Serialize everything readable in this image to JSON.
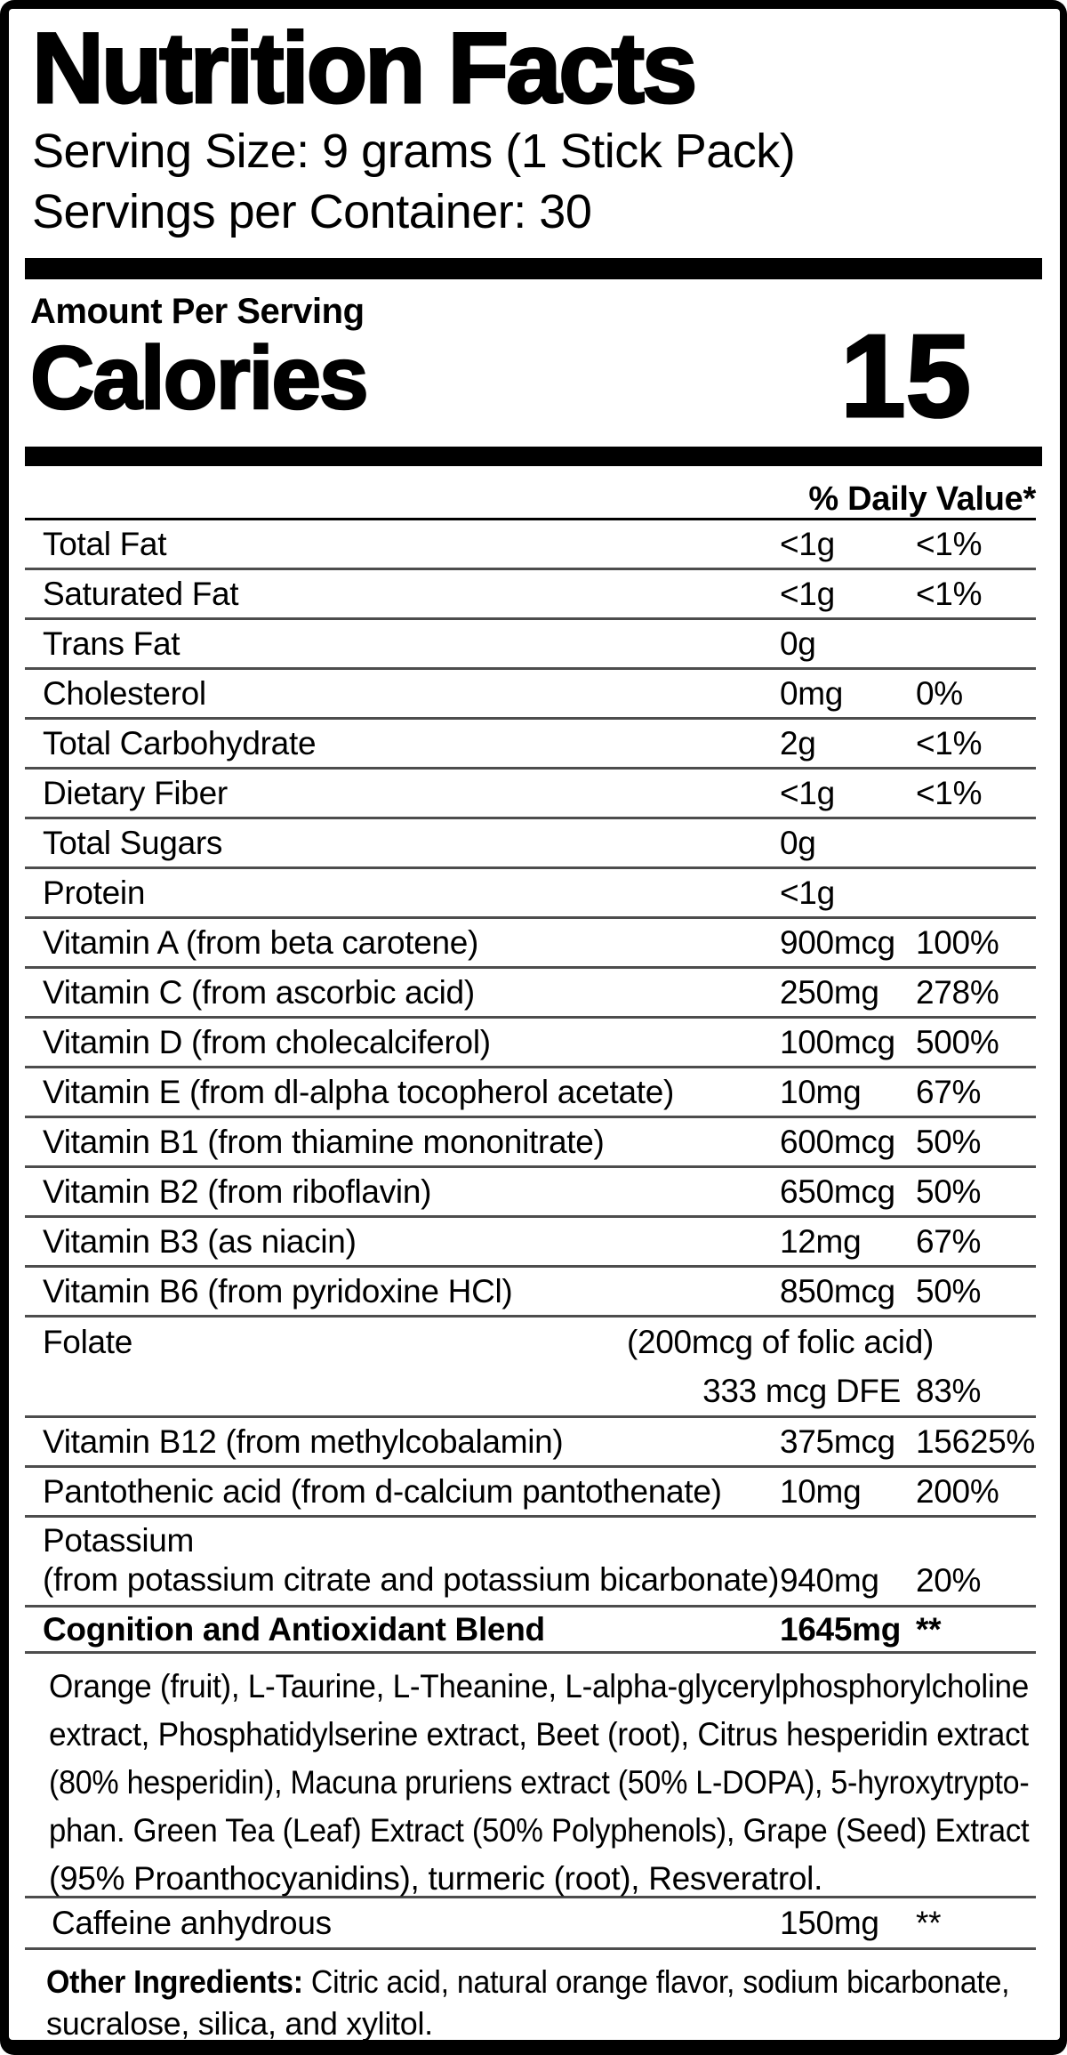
{
  "label": {
    "title": "Nutrition Facts",
    "serving_size": "Serving Size: 9 grams (1 Stick Pack)",
    "servings_per_container": "Servings per Container: 30",
    "amount_per_serving": "Amount Per Serving",
    "calories_label": "Calories",
    "calories_value": "15",
    "daily_value_header": "% Daily Value*",
    "nutrient_rows_main": [
      {
        "name": "Total Fat",
        "amount": "<1g",
        "dv": "<1%"
      },
      {
        "name": "Saturated Fat",
        "amount": "<1g",
        "dv": "<1%"
      },
      {
        "name": "Trans Fat",
        "amount": "0g",
        "dv": ""
      },
      {
        "name": "Cholesterol",
        "amount": "0mg",
        "dv": "0%"
      },
      {
        "name": "Total Carbohydrate",
        "amount": "2g",
        "dv": "<1%"
      },
      {
        "name": "Dietary Fiber",
        "amount": "<1g",
        "dv": "<1%"
      },
      {
        "name": "Total Sugars",
        "amount": "0g",
        "dv": ""
      },
      {
        "name": "Protein",
        "amount": "<1g",
        "dv": ""
      },
      {
        "name": "Vitamin A (from beta carotene)",
        "amount": "900mcg",
        "dv": "100%"
      },
      {
        "name": "Vitamin C (from ascorbic acid)",
        "amount": "250mg",
        "dv": "278%"
      },
      {
        "name": "Vitamin D (from cholecalciferol)",
        "amount": "100mcg",
        "dv": "500%"
      },
      {
        "name": "Vitamin E (from dl-alpha tocopherol acetate)",
        "amount": "10mg",
        "dv": "67%"
      },
      {
        "name": "Vitamin B1 (from thiamine mononitrate)",
        "amount": "600mcg",
        "dv": "50%"
      },
      {
        "name": "Vitamin B2 (from riboflavin)",
        "amount": "650mcg",
        "dv": "50%"
      },
      {
        "name": "Vitamin B3 (as niacin)",
        "amount": "12mg",
        "dv": "67%"
      },
      {
        "name": "Vitamin B6 (from pyridoxine HCl)",
        "amount": "850mcg",
        "dv": "50%"
      }
    ],
    "folate": {
      "name": "Folate",
      "note": "(200mcg of folic acid)",
      "amount": "333 mcg DFE",
      "dv": "83%"
    },
    "nutrient_rows_after_folate": [
      {
        "name": "Vitamin B12 (from methylcobalamin)",
        "amount": "375mcg",
        "dv": "15625%"
      },
      {
        "name": "Pantothenic acid (from d-calcium pantothenate)",
        "amount": "10mg",
        "dv": "200%"
      }
    ],
    "potassium": {
      "name": "Potassium",
      "source": "(from potassium citrate and potassium bicarbonate)",
      "amount": "940mg",
      "dv": "20%"
    },
    "blend": {
      "name": "Cognition and Antioxidant Blend",
      "amount": "1645mg",
      "dv": "**",
      "description_lines": [
        "Orange (fruit), L-Taurine, L-Theanine, L-alpha-glycerylphosphorylcholine",
        "extract, Phosphatidylserine extract, Beet (root), Citrus hesperidin extract",
        "(80% hesperidin), Macuna pruriens extract (50% L-DOPA), 5-hyroxytrypto-",
        "phan. Green Tea (Leaf) Extract (50% Polyphenols), Grape (Seed) Extract",
        "(95% Proanthocyanidins), turmeric (root), Resveratrol."
      ]
    },
    "caffeine": {
      "name": "Caffeine anhydrous",
      "amount": "150mg",
      "dv": "**"
    },
    "other_ingredients": {
      "prefix": "Other Ingredients:",
      "line1_rest": " Citric acid, natural orange flavor, sodium bicarbonate,",
      "line2": "sucralose, silica, and xylitol."
    },
    "colors": {
      "text": "#000000",
      "background": "#ffffff",
      "border": "#000000",
      "separator": "#4d4d4d"
    }
  }
}
